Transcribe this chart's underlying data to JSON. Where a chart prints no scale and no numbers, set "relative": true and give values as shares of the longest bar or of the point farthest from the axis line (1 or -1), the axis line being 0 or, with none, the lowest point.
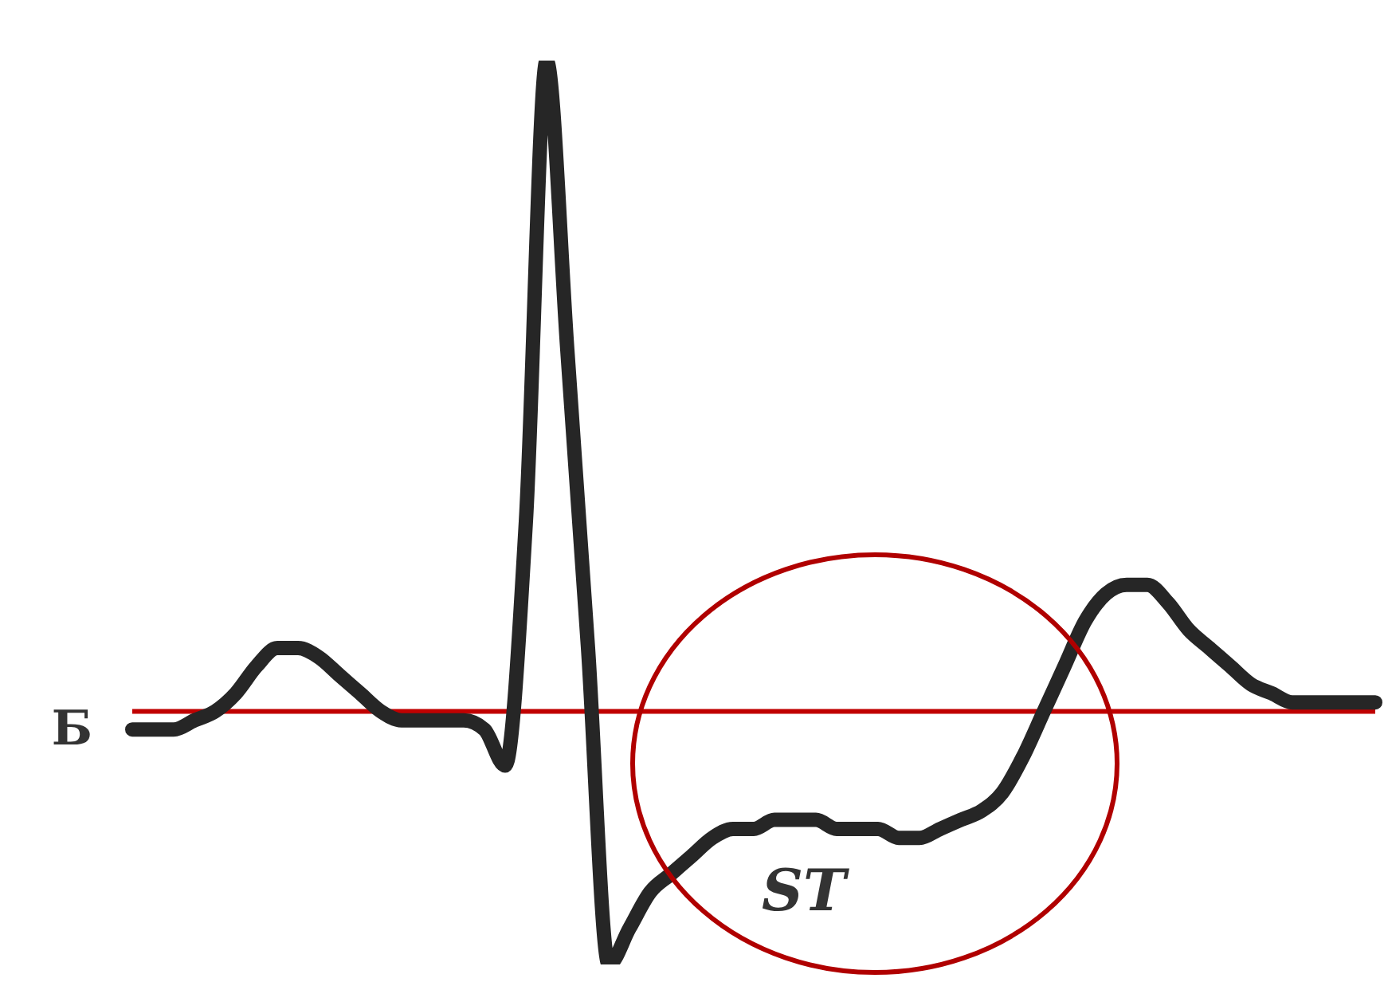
{
  "chart_data": {
    "type": "line",
    "relative": true,
    "marker": "none",
    "line_style": "solid",
    "color": "#262626",
    "categories": [
      null,
      null,
      null,
      null,
      null,
      null,
      null,
      null,
      null,
      null,
      null,
      null,
      null,
      null,
      null,
      null,
      null,
      null,
      null,
      null,
      null,
      null,
      null,
      null,
      null,
      null,
      null,
      null,
      null,
      null,
      null,
      null,
      null,
      null,
      null,
      null,
      null,
      null,
      null,
      null,
      null,
      null,
      null,
      null,
      null,
      null,
      null,
      null,
      null,
      null,
      null,
      null,
      null,
      null,
      null,
      null,
      null,
      null,
      null,
      null,
      null
    ],
    "values": [
      0.26,
      0.26,
      0.26,
      0.27,
      0.28,
      0.3,
      0.33,
      0.35,
      0.35,
      0.34,
      0.32,
      0.3,
      0.28,
      0.27,
      0.27,
      0.27,
      0.27,
      0.26,
      0.22,
      0.49,
      1.0,
      0.68,
      0.35,
      0.0,
      0.04,
      0.08,
      0.1,
      0.12,
      0.14,
      0.15,
      0.15,
      0.16,
      0.16,
      0.16,
      0.15,
      0.15,
      0.15,
      0.14,
      0.14,
      0.15,
      0.16,
      0.17,
      0.19,
      0.23,
      0.28,
      0.33,
      0.38,
      0.41,
      0.42,
      0.42,
      0.4,
      0.37,
      0.35,
      0.33,
      0.31,
      0.3,
      0.29,
      0.29,
      0.29,
      0.29,
      0.29
    ],
    "ref_lines": [
      {
        "axis": "y",
        "value": 0.28,
        "label": "Б",
        "color": "#c00000"
      }
    ],
    "annotations": [
      "ST"
    ]
  }
}
